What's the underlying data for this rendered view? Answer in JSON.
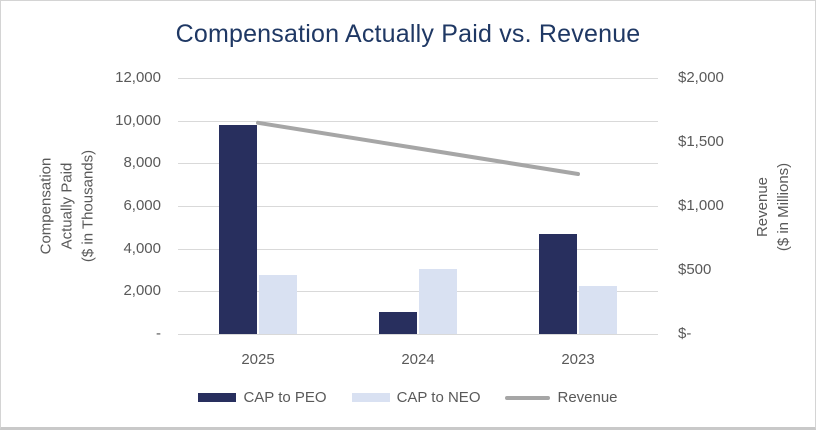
{
  "chart_data": {
    "type": "bar",
    "subtype": "combo-bar-line-dual-axis",
    "title": "Compensation Actually Paid vs. Revenue",
    "categories": [
      "2025",
      "2024",
      "2023"
    ],
    "series": [
      {
        "name": "CAP to PEO",
        "type": "bar",
        "axis": "left",
        "color": "#282F5E",
        "values": [
          9800,
          1050,
          4700
        ]
      },
      {
        "name": "CAP to NEO",
        "type": "bar",
        "axis": "left",
        "color": "#D9E1F2",
        "values": [
          2750,
          3050,
          2250
        ]
      },
      {
        "name": "Revenue",
        "type": "line",
        "axis": "right",
        "color": "#A6A6A6",
        "values": [
          1650,
          1450,
          1250
        ]
      }
    ],
    "left_axis": {
      "title_lines": [
        "Compensation",
        "Actually Paid",
        "($ in Thousands)"
      ],
      "min": 0,
      "max": 12000,
      "tick_labels": [
        "12,000",
        "10,000",
        "8,000",
        "6,000",
        "4,000",
        "2,000",
        "-"
      ]
    },
    "right_axis": {
      "title_lines": [
        "Revenue",
        "($ in Millions)"
      ],
      "min": 0,
      "max": 2000,
      "tick_labels": [
        "$2,000",
        "$1,500",
        "$1,000",
        "$500",
        "$-"
      ]
    },
    "grid": true,
    "legend_position": "bottom"
  },
  "colors": {
    "title_text": "#1F3864",
    "axis_text": "#595959",
    "gridline": "#D9D9D9",
    "cap_to_peo": "#282F5E",
    "cap_to_neo": "#D9E1F2",
    "revenue_line": "#A6A6A6"
  }
}
